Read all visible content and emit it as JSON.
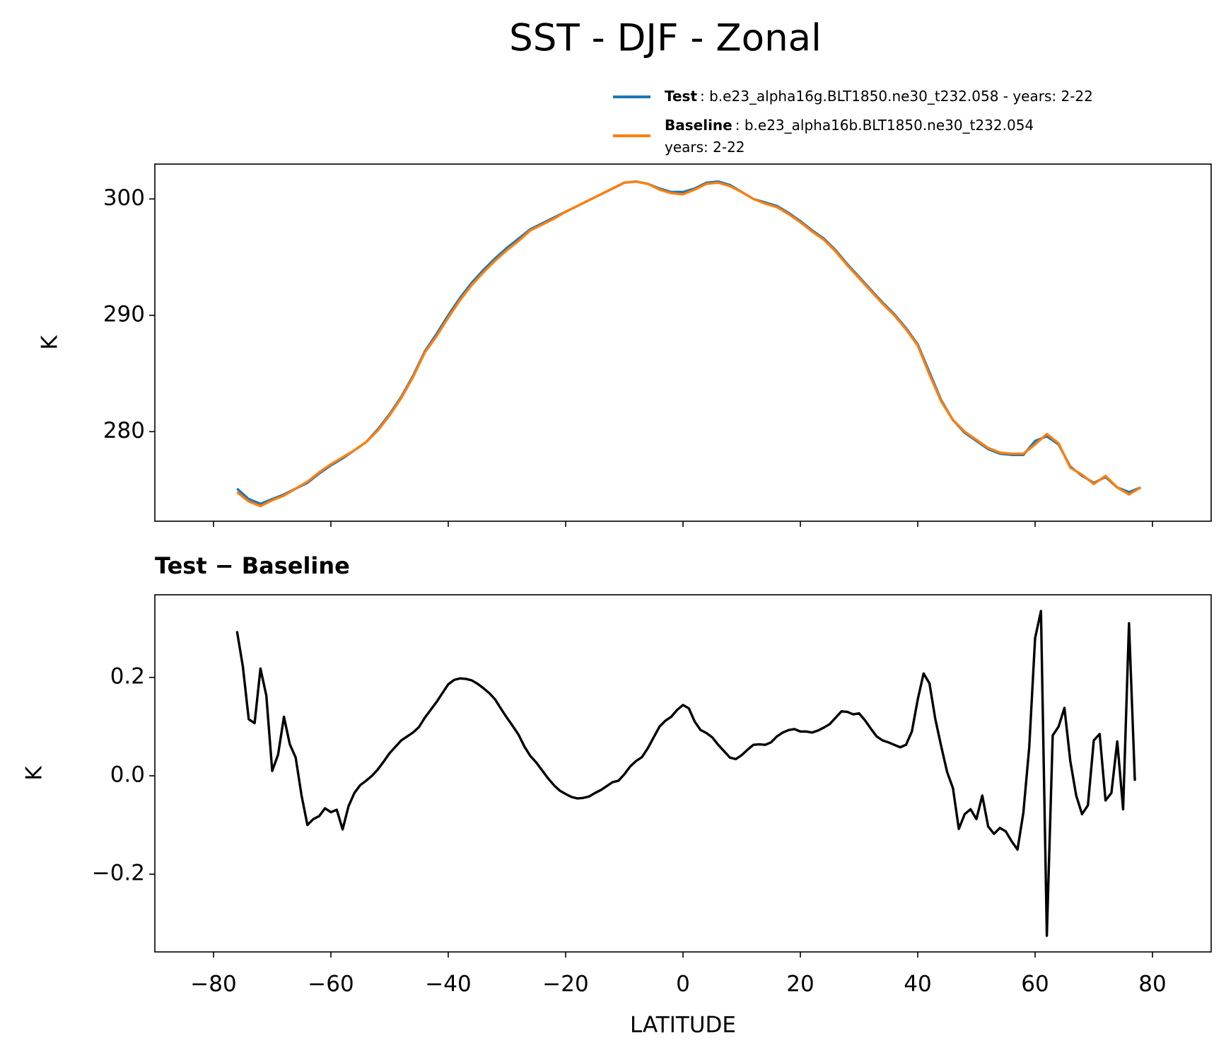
{
  "chart_data": [
    {
      "type": "line",
      "title": "SST - DJF - Zonal",
      "ylabel": "K",
      "x": [
        -76,
        -74,
        -72,
        -70,
        -68,
        -66,
        -64,
        -62,
        -60,
        -58,
        -56,
        -54,
        -52,
        -50,
        -48,
        -46,
        -44,
        -42,
        -40,
        -38,
        -36,
        -34,
        -32,
        -30,
        -28,
        -26,
        -24,
        -22,
        -20,
        -18,
        -16,
        -14,
        -12,
        -10,
        -8,
        -6,
        -4,
        -2,
        0,
        2,
        4,
        6,
        8,
        10,
        12,
        14,
        16,
        18,
        20,
        22,
        24,
        26,
        28,
        30,
        32,
        34,
        36,
        38,
        40,
        42,
        44,
        46,
        48,
        50,
        52,
        54,
        56,
        58,
        60,
        62,
        64,
        66,
        68,
        70,
        72,
        74,
        76,
        78
      ],
      "series": [
        {
          "name": "Test",
          "label_lines": [
            ": b.e23_alpha16g.BLT1850.ne30_t232.058 - years: 2-22"
          ],
          "color": "#1f77b4",
          "values": [
            275.1,
            274.2,
            273.8,
            274.2,
            274.6,
            275.1,
            275.6,
            276.4,
            277.1,
            277.7,
            278.4,
            279.1,
            280.2,
            281.5,
            283.0,
            284.8,
            286.9,
            288.4,
            290.0,
            291.5,
            292.8,
            293.9,
            294.9,
            295.8,
            296.6,
            297.4,
            297.9,
            298.4,
            298.9,
            299.4,
            299.9,
            300.4,
            300.9,
            301.4,
            301.5,
            301.3,
            300.9,
            300.6,
            300.6,
            300.9,
            301.4,
            301.5,
            301.2,
            300.6,
            300.0,
            299.7,
            299.4,
            298.8,
            298.1,
            297.3,
            296.6,
            295.6,
            294.4,
            293.3,
            292.2,
            291.1,
            290.1,
            288.9,
            287.5,
            285.1,
            282.7,
            281.0,
            279.9,
            279.2,
            278.5,
            278.1,
            278.0,
            278.0,
            279.2,
            279.6,
            278.9,
            277.0,
            276.2,
            275.6,
            276.1,
            275.2,
            274.8,
            275.2
          ]
        },
        {
          "name": "Baseline",
          "label_lines": [
            ": b.e23_alpha16b.BLT1850.ne30_t232.054",
            "years: 2-22"
          ],
          "color": "#ff7f0e",
          "values": [
            274.8,
            274.0,
            273.6,
            274.1,
            274.5,
            275.1,
            275.7,
            276.5,
            277.2,
            277.8,
            278.4,
            279.1,
            280.1,
            281.4,
            282.9,
            284.7,
            286.8,
            288.2,
            289.8,
            291.3,
            292.6,
            293.7,
            294.7,
            295.6,
            296.4,
            297.3,
            297.8,
            298.3,
            298.9,
            299.4,
            299.9,
            300.4,
            300.9,
            301.4,
            301.5,
            301.3,
            300.8,
            300.5,
            300.4,
            300.8,
            301.3,
            301.4,
            301.1,
            300.6,
            300.0,
            299.6,
            299.3,
            298.7,
            298.0,
            297.2,
            296.5,
            295.5,
            294.3,
            293.2,
            292.1,
            291.0,
            290.0,
            288.8,
            287.4,
            284.9,
            282.6,
            281.0,
            280.0,
            279.3,
            278.6,
            278.2,
            278.1,
            278.1,
            278.9,
            279.8,
            279.0,
            276.9,
            276.3,
            275.5,
            276.2,
            275.2,
            274.6,
            275.2
          ]
        }
      ],
      "xlim": [
        -90,
        90
      ],
      "xticks": [
        {
          "value": -80,
          "label": "−80"
        },
        {
          "value": -60,
          "label": "−60"
        },
        {
          "value": -40,
          "label": "−40"
        },
        {
          "value": -20,
          "label": "−20"
        },
        0,
        20,
        40,
        60,
        80
      ],
      "show_xtick_labels": false,
      "ylim": [
        272.3,
        303.0
      ],
      "yticks": [
        280,
        290,
        300
      ]
    },
    {
      "type": "line",
      "title": "Test − Baseline",
      "ylabel": "K",
      "xlabel": "LATITUDE",
      "x": [
        -76,
        -75,
        -74,
        -73,
        -72,
        -71,
        -70,
        -69,
        -68,
        -67,
        -66,
        -65,
        -64,
        -63,
        -62,
        -61,
        -60,
        -59,
        -58,
        -57,
        -56,
        -55,
        -54,
        -53,
        -52,
        -51,
        -50,
        -49,
        -48,
        -47,
        -46,
        -45,
        -44,
        -43,
        -42,
        -41,
        -40,
        -39,
        -38,
        -37,
        -36,
        -35,
        -34,
        -33,
        -32,
        -31,
        -30,
        -29,
        -28,
        -27,
        -26,
        -25,
        -24,
        -23,
        -22,
        -21,
        -20,
        -19,
        -18,
        -17,
        -16,
        -15,
        -14,
        -13,
        -12,
        -11,
        -10,
        -9,
        -8,
        -7,
        -6,
        -5,
        -4,
        -3,
        -2,
        -1,
        0,
        1,
        2,
        3,
        4,
        5,
        6,
        7,
        8,
        9,
        10,
        11,
        12,
        13,
        14,
        15,
        16,
        17,
        18,
        19,
        20,
        21,
        22,
        23,
        24,
        25,
        26,
        27,
        28,
        29,
        30,
        31,
        32,
        33,
        34,
        35,
        36,
        37,
        38,
        39,
        40,
        41,
        42,
        43,
        44,
        45,
        46,
        47,
        48,
        49,
        50,
        51,
        52,
        53,
        54,
        55,
        56,
        57,
        58,
        59,
        60,
        61,
        62,
        63,
        64,
        65,
        66,
        67,
        68,
        69,
        70,
        71,
        72,
        73,
        74,
        75,
        76,
        77
      ],
      "series": [
        {
          "color": "#000000",
          "values": [
            0.294,
            0.222,
            0.115,
            0.107,
            0.218,
            0.163,
            0.01,
            0.043,
            0.12,
            0.064,
            0.037,
            -0.04,
            -0.1,
            -0.088,
            -0.082,
            -0.066,
            -0.074,
            -0.069,
            -0.109,
            -0.062,
            -0.035,
            -0.019,
            -0.01,
            0.0,
            0.013,
            0.029,
            0.046,
            0.059,
            0.072,
            0.08,
            0.088,
            0.099,
            0.118,
            0.134,
            0.15,
            0.168,
            0.186,
            0.195,
            0.198,
            0.197,
            0.194,
            0.187,
            0.178,
            0.168,
            0.155,
            0.136,
            0.118,
            0.101,
            0.083,
            0.059,
            0.04,
            0.027,
            0.011,
            -0.005,
            -0.019,
            -0.03,
            -0.037,
            -0.043,
            -0.046,
            -0.045,
            -0.042,
            -0.035,
            -0.029,
            -0.021,
            -0.013,
            -0.01,
            0.003,
            0.019,
            0.03,
            0.038,
            0.056,
            0.078,
            0.1,
            0.112,
            0.12,
            0.134,
            0.144,
            0.137,
            0.11,
            0.093,
            0.087,
            0.078,
            0.063,
            0.05,
            0.037,
            0.034,
            0.042,
            0.053,
            0.063,
            0.064,
            0.063,
            0.068,
            0.08,
            0.088,
            0.093,
            0.095,
            0.09,
            0.09,
            0.088,
            0.092,
            0.098,
            0.105,
            0.118,
            0.131,
            0.13,
            0.125,
            0.127,
            0.113,
            0.096,
            0.08,
            0.072,
            0.068,
            0.063,
            0.058,
            0.063,
            0.09,
            0.155,
            0.208,
            0.188,
            0.115,
            0.06,
            0.008,
            -0.025,
            -0.108,
            -0.078,
            -0.068,
            -0.088,
            -0.04,
            -0.103,
            -0.118,
            -0.106,
            -0.113,
            -0.133,
            -0.15,
            -0.075,
            0.058,
            0.28,
            0.335,
            -0.325,
            0.082,
            0.1,
            0.138,
            0.03,
            -0.04,
            -0.078,
            -0.06,
            0.072,
            0.085,
            -0.05,
            -0.035,
            0.07,
            -0.068,
            0.31,
            -0.01
          ]
        }
      ],
      "xlim": [
        -90,
        90
      ],
      "xticks": [
        {
          "value": -80,
          "label": "−80"
        },
        {
          "value": -60,
          "label": "−60"
        },
        {
          "value": -40,
          "label": "−40"
        },
        {
          "value": -20,
          "label": "−20"
        },
        0,
        20,
        40,
        60,
        80
      ],
      "show_xtick_labels": true,
      "ylim": [
        -0.358,
        0.368
      ],
      "yticks": [
        {
          "value": -0.2,
          "label": "−0.2"
        },
        {
          "value": 0,
          "label": "0.0"
        },
        0.2
      ]
    }
  ]
}
